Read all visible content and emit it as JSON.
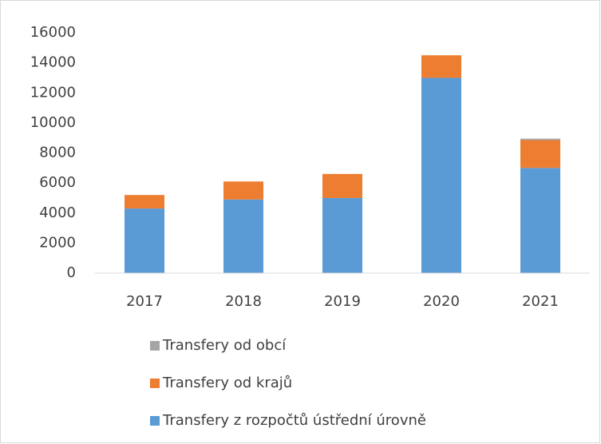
{
  "chart_data": {
    "type": "stacked_bar",
    "categories": [
      "2017",
      "2018",
      "2019",
      "2020",
      "2021"
    ],
    "series": [
      {
        "name": "Transfery z rozpočtů ústřední úrovně",
        "color": "#5b9bd5",
        "values": [
          4300,
          4900,
          5000,
          13000,
          7000
        ]
      },
      {
        "name": "Transfery od krajů",
        "color": "#ed7d31",
        "values": [
          900,
          1200,
          1600,
          1500,
          1850
        ]
      },
      {
        "name": "Transfery od obcí",
        "color": "#a5a5a5",
        "values": [
          0,
          0,
          0,
          0,
          100
        ]
      }
    ],
    "ylim": [
      0,
      16000
    ],
    "yticks": [
      0,
      2000,
      4000,
      6000,
      8000,
      10000,
      12000,
      14000,
      16000
    ],
    "legend": "bottom"
  }
}
